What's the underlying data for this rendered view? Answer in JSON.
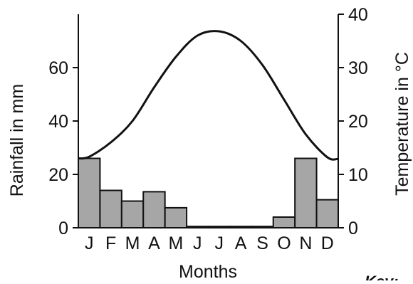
{
  "chart_data": {
    "type": "bar",
    "title": "",
    "xlabel": "Months",
    "categories": [
      "J",
      "F",
      "M",
      "A",
      "M",
      "J",
      "J",
      "A",
      "S",
      "O",
      "N",
      "D"
    ],
    "y_left": {
      "label": "Rainfall in mm",
      "ticks": [
        0,
        20,
        40,
        60
      ],
      "ylim": [
        0,
        80
      ]
    },
    "y_right": {
      "label": "Temperature in °C",
      "ticks": [
        0,
        10,
        20,
        30,
        40
      ],
      "ylim": [
        0,
        40
      ]
    },
    "series": [
      {
        "kind": "bar",
        "axis": "left",
        "unit": "mm",
        "values": [
          26,
          14,
          10,
          13.5,
          7.5,
          0.5,
          0.5,
          0.5,
          0.5,
          4,
          26,
          10.5
        ]
      },
      {
        "kind": "line",
        "axis": "right",
        "unit": "°C",
        "values": [
          13.3,
          16,
          20,
          26.3,
          32,
          36,
          36.8,
          35,
          30.5,
          24,
          17.5,
          13.2
        ]
      }
    ],
    "colors": {
      "bar_fill": "#a6a6a6",
      "bar_stroke": "#111111",
      "line": "#111111",
      "axis": "#111111"
    },
    "legend_label": "Key:"
  }
}
